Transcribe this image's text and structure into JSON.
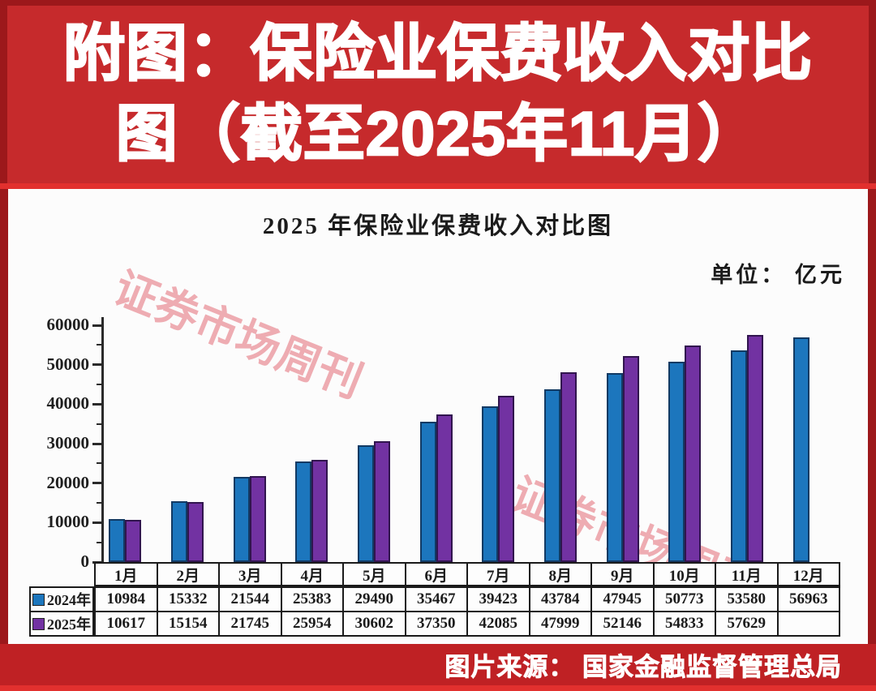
{
  "banner": {
    "line1": "附图：保险业保费收入对比",
    "line2": "图（截至2025年11月）"
  },
  "panel": {
    "title": "2025 年保险业保费收入对比图",
    "unit_label": "单位： 亿元",
    "watermark": "证券市场周刊"
  },
  "footer": {
    "source": "图片来源： 国家金融监督管理总局"
  },
  "colors": {
    "banner_red": "#C62A2C",
    "frame_red": "#9C181B",
    "divider_red": "#E2302E",
    "footer_red": "#BF2124",
    "bar_2024_blue": "#1C76BD",
    "bar_2025_purple": "#7232A2",
    "watermark_pink": "#DF5C68",
    "table_border": "#1B1B1B"
  },
  "chart_data": {
    "type": "bar",
    "title": "2025 年保险业保费收入对比图",
    "unit": "亿元",
    "categories": [
      "1月",
      "2月",
      "3月",
      "4月",
      "5月",
      "6月",
      "7月",
      "8月",
      "9月",
      "10月",
      "11月",
      "12月"
    ],
    "series": [
      {
        "name": "2024年",
        "color": "#1C76BD",
        "border": "#123a63",
        "values": [
          10984,
          15332,
          21544,
          25383,
          29490,
          35467,
          39423,
          43784,
          47945,
          50773,
          53580,
          56963
        ]
      },
      {
        "name": "2025年",
        "color": "#7232A2",
        "border": "#31154e",
        "values": [
          10617,
          15154,
          21745,
          25954,
          30602,
          37350,
          42085,
          47999,
          52146,
          54833,
          57629,
          null
        ]
      }
    ],
    "ylim": [
      0,
      60000
    ],
    "ytick_major": 10000,
    "ytick_minor": 5000,
    "yticks": [
      0,
      10000,
      20000,
      30000,
      40000,
      50000,
      60000
    ],
    "grid": false,
    "legend_position": "table-left",
    "data_table_shown": true
  }
}
